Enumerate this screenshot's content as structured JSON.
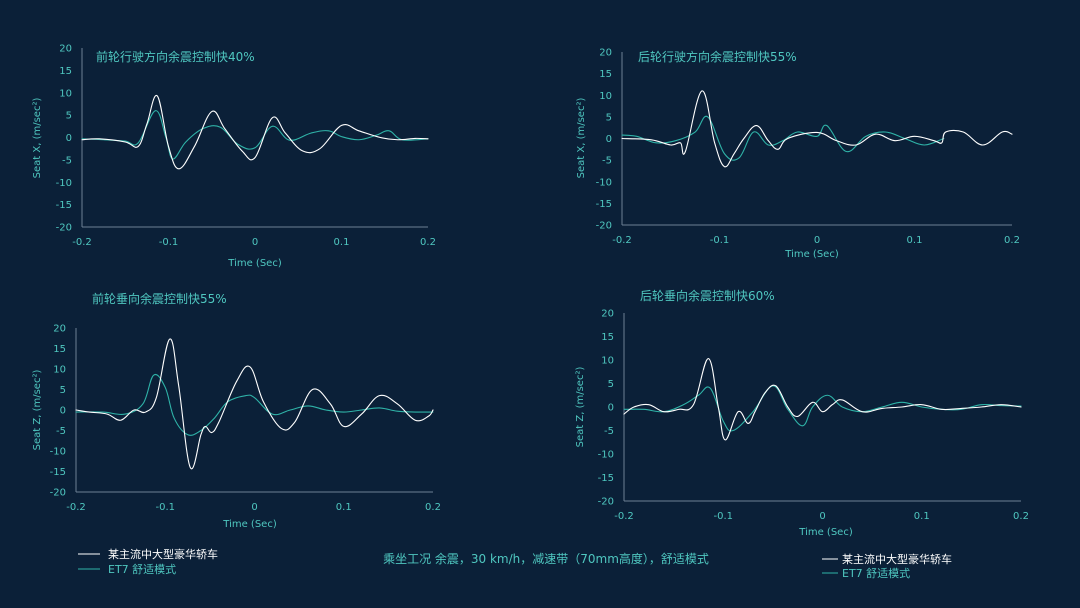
{
  "colors": {
    "background": "#0b2038",
    "text_teal": "#4fc7c0",
    "axis": "#6c8095",
    "series_white": "#ffffff",
    "series_teal": "#2fb3a8"
  },
  "caption": "乘坐工况  余震，30 km/h，减速带（70mm高度），舒适模式",
  "legend_left": {
    "items": [
      {
        "label": "某主流中大型豪华轿车",
        "color": "#ffffff"
      },
      {
        "label": "ET7 舒适模式",
        "color": "#2fb3a8"
      }
    ]
  },
  "legend_right": {
    "items": [
      {
        "label": "某主流中大型豪华轿车",
        "color": "#ffffff"
      },
      {
        "label": "ET7 舒适模式",
        "color": "#2fb3a8"
      }
    ]
  },
  "chart_data": [
    {
      "type": "line",
      "title": "前轮行驶方向余震控制快40%",
      "xlabel": "Time (Sec)",
      "ylabel": "Seat X, (m/sec²)",
      "xlim": [
        -0.2,
        0.2
      ],
      "ylim": [
        -20,
        20
      ],
      "xticks": [
        "-0.2",
        "-0.1",
        "0",
        "0.1",
        "0.2"
      ],
      "yticks": [
        "20",
        "15",
        "10",
        "5",
        "0",
        "-5",
        "-10",
        "-15",
        "-20"
      ],
      "series": [
        {
          "name": "某主流中大型豪华轿车",
          "x": [
            -0.2,
            -0.18,
            -0.15,
            -0.135,
            -0.125,
            -0.113,
            -0.1,
            -0.088,
            -0.07,
            -0.05,
            -0.035,
            -0.015,
            0.0,
            0.02,
            0.035,
            0.055,
            0.075,
            0.1,
            0.12,
            0.145,
            0.165,
            0.185,
            0.2
          ],
          "y": [
            -0.5,
            -0.3,
            -1.0,
            -2.0,
            3.0,
            9.3,
            -2.0,
            -7.0,
            -2.0,
            5.8,
            2.0,
            -3.0,
            -4.5,
            4.4,
            1.0,
            -3.0,
            -2.5,
            2.7,
            1.5,
            0.0,
            -0.5,
            -0.2,
            -0.3
          ]
        },
        {
          "name": "ET7 舒适模式",
          "x": [
            -0.2,
            -0.175,
            -0.15,
            -0.135,
            -0.115,
            -0.103,
            -0.095,
            -0.08,
            -0.06,
            -0.04,
            -0.02,
            0.0,
            0.02,
            0.04,
            0.065,
            0.085,
            0.1,
            0.12,
            0.14,
            0.155,
            0.17,
            0.2
          ],
          "y": [
            -0.3,
            -0.5,
            -0.8,
            -1.2,
            6.0,
            0.0,
            -4.8,
            -1.0,
            2.0,
            2.3,
            -1.5,
            -2.3,
            2.5,
            -0.6,
            1.0,
            1.5,
            0.2,
            -0.5,
            0.5,
            1.5,
            -0.5,
            -0.3
          ]
        }
      ]
    },
    {
      "type": "line",
      "title": "后轮行驶方向余震控制快55%",
      "xlabel": "Time (Sec)",
      "ylabel": "Seat X, (m/sec²)",
      "xlim": [
        -0.2,
        0.2
      ],
      "ylim": [
        -20,
        20
      ],
      "xticks": [
        "-0.2",
        "-0.1",
        "0",
        "0.1",
        "0.2"
      ],
      "yticks": [
        "20",
        "15",
        "10",
        "5",
        "0",
        "-5",
        "-10",
        "-15",
        "-20"
      ],
      "series": [
        {
          "name": "某主流中大型豪华轿车",
          "x": [
            -0.2,
            -0.17,
            -0.15,
            -0.14,
            -0.135,
            -0.118,
            -0.105,
            -0.095,
            -0.085,
            -0.075,
            -0.062,
            -0.05,
            -0.04,
            -0.03,
            0.0,
            0.02,
            0.04,
            0.06,
            0.08,
            0.1,
            0.12,
            0.128,
            0.132,
            0.15,
            0.17,
            0.19,
            0.2
          ],
          "y": [
            0.0,
            -0.3,
            -1.5,
            -1.0,
            -3.0,
            11.0,
            -1.0,
            -6.5,
            -3.5,
            0.0,
            3.0,
            -0.5,
            -2.5,
            0.0,
            1.4,
            -0.5,
            -1.5,
            1.0,
            -0.5,
            0.5,
            -0.5,
            -1.0,
            1.5,
            1.5,
            -1.5,
            1.5,
            1.0
          ]
        },
        {
          "name": "ET7 舒适模式",
          "x": [
            -0.2,
            -0.185,
            -0.165,
            -0.145,
            -0.125,
            -0.112,
            -0.095,
            -0.08,
            -0.065,
            -0.05,
            -0.035,
            -0.02,
            0.0,
            0.01,
            0.03,
            0.05,
            0.07,
            0.09,
            0.11,
            0.13
          ],
          "y": [
            0.8,
            0.5,
            -1.0,
            -0.5,
            1.5,
            5.0,
            -3.5,
            -4.5,
            1.5,
            -1.5,
            -0.5,
            1.5,
            0.5,
            3.0,
            -3.0,
            0.5,
            1.5,
            0.0,
            -1.5,
            0.0
          ]
        }
      ]
    },
    {
      "type": "line",
      "title": "前轮垂向余震控制快55%",
      "xlabel": "Time (Sec)",
      "ylabel": "Seat Z, (m/sec²)",
      "xlim": [
        -0.2,
        0.2
      ],
      "ylim": [
        -20,
        20
      ],
      "xticks": [
        "-0.2",
        "-0.1",
        "0",
        "0.1",
        "0.2"
      ],
      "yticks": [
        "20",
        "15",
        "10",
        "5",
        "0",
        "-5",
        "-10",
        "-15",
        "-20"
      ],
      "series": [
        {
          "name": "某主流中大型豪华轿车",
          "x": [
            -0.2,
            -0.185,
            -0.165,
            -0.15,
            -0.135,
            -0.122,
            -0.11,
            -0.095,
            -0.085,
            -0.072,
            -0.06,
            -0.055,
            -0.048,
            -0.04,
            -0.02,
            -0.005,
            0.01,
            0.03,
            0.045,
            0.065,
            0.085,
            0.1,
            0.12,
            0.14,
            0.16,
            0.18,
            0.195,
            0.2
          ],
          "y": [
            0.0,
            -0.5,
            -1.0,
            -2.5,
            0.0,
            -0.5,
            3.0,
            17.3,
            6.0,
            -14.0,
            -6.0,
            -4.0,
            -5.5,
            -3.0,
            7.0,
            10.5,
            2.0,
            -4.5,
            -3.0,
            5.0,
            1.5,
            -4.0,
            -1.0,
            3.5,
            1.5,
            -2.5,
            -1.5,
            0.0
          ]
        },
        {
          "name": "ET7 舒适模式",
          "x": [
            -0.2,
            -0.17,
            -0.145,
            -0.125,
            -0.113,
            -0.1,
            -0.09,
            -0.075,
            -0.06,
            -0.045,
            -0.03,
            -0.01,
            0.0,
            0.02,
            0.04,
            0.06,
            0.08,
            0.1,
            0.12,
            0.14,
            0.16,
            0.18,
            0.2
          ],
          "y": [
            -0.5,
            -0.5,
            -1.0,
            1.5,
            8.5,
            5.5,
            -2.0,
            -6.0,
            -5.0,
            -2.0,
            2.0,
            3.5,
            3.0,
            -1.0,
            0.0,
            1.0,
            0.0,
            -0.5,
            0.0,
            0.5,
            -0.3,
            -0.5,
            -0.5
          ]
        }
      ]
    },
    {
      "type": "line",
      "title": "后轮垂向余震控制快60%",
      "xlabel": "Time (Sec)",
      "ylabel": "Seat Z, (m/sec²)",
      "xlim": [
        -0.2,
        0.2
      ],
      "ylim": [
        -20,
        20
      ],
      "xticks": [
        "-0.2",
        "-0.1",
        "0",
        "0.1",
        "0.2"
      ],
      "yticks": [
        "20",
        "15",
        "10",
        "5",
        "0",
        "-5",
        "-10",
        "-15",
        "-20"
      ],
      "series": [
        {
          "name": "某主流中大型豪华轿车",
          "x": [
            -0.2,
            -0.19,
            -0.175,
            -0.16,
            -0.145,
            -0.13,
            -0.115,
            -0.105,
            -0.098,
            -0.085,
            -0.075,
            -0.068,
            -0.058,
            -0.047,
            -0.035,
            -0.025,
            -0.01,
            0.0,
            0.01,
            0.02,
            0.04,
            0.06,
            0.08,
            0.1,
            0.12,
            0.14,
            0.16,
            0.18,
            0.2
          ],
          "y": [
            -1.5,
            0.0,
            0.5,
            -1.0,
            -0.5,
            0.5,
            10.3,
            0.0,
            -7.0,
            -1.0,
            -3.5,
            -1.0,
            3.0,
            4.5,
            0.0,
            -2.0,
            1.0,
            -1.0,
            0.5,
            1.5,
            -1.0,
            -0.3,
            0.0,
            0.5,
            -0.5,
            -0.3,
            0.0,
            0.5,
            0.0
          ]
        },
        {
          "name": "ET7 舒适模式",
          "x": [
            -0.2,
            -0.18,
            -0.16,
            -0.14,
            -0.125,
            -0.113,
            -0.1,
            -0.09,
            -0.07,
            -0.05,
            -0.035,
            -0.02,
            -0.01,
            0.005,
            0.02,
            0.04,
            0.06,
            0.08,
            0.1,
            0.12,
            0.14,
            0.16,
            0.18,
            0.2
          ],
          "y": [
            -0.5,
            -0.5,
            -1.0,
            0.5,
            2.5,
            4.0,
            -3.0,
            -5.0,
            -1.0,
            4.5,
            -0.5,
            -4.0,
            0.0,
            2.5,
            0.0,
            -1.0,
            0.0,
            1.0,
            0.0,
            -0.5,
            -0.5,
            0.5,
            0.3,
            0.2
          ]
        }
      ]
    }
  ]
}
